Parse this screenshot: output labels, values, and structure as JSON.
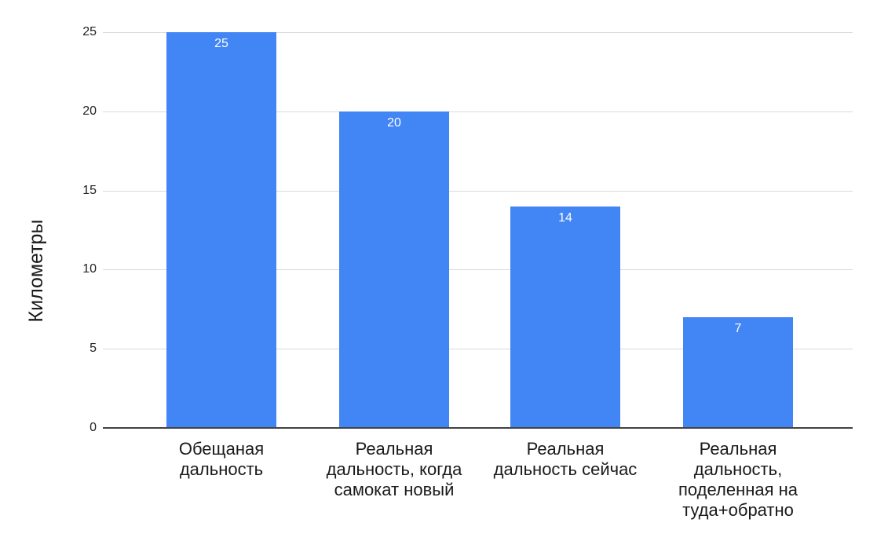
{
  "chart_data": {
    "type": "bar",
    "title": "",
    "xlabel": "",
    "ylabel": "Километры",
    "categories": [
      "Обещаная дальность",
      "Реальная дальность, когда самокат новый",
      "Реальная дальность сейчас",
      "Реальная дальность, поделенная на туда+обратно"
    ],
    "category_display_lines": [
      [
        "Обещаная",
        "дальность"
      ],
      [
        "Реальная",
        "дальность, когда",
        "самокат новый"
      ],
      [
        "Реальная",
        "дальность сейчас"
      ],
      [
        "Реальная",
        "дальность,",
        "поделенная на",
        "туда+обратно"
      ]
    ],
    "values": [
      25,
      20,
      14,
      7
    ],
    "yticks": [
      0,
      5,
      10,
      15,
      20,
      25
    ],
    "ylim": [
      0,
      25
    ],
    "grid": true,
    "legend": "none",
    "colors": {
      "bar": "#4285f4",
      "gridline": "#d9d9d9",
      "baseline": "#424242",
      "tick_text": "#222222",
      "label_text": "#1a1a1a",
      "value_text": "#ffffff",
      "background": "#ffffff"
    }
  }
}
